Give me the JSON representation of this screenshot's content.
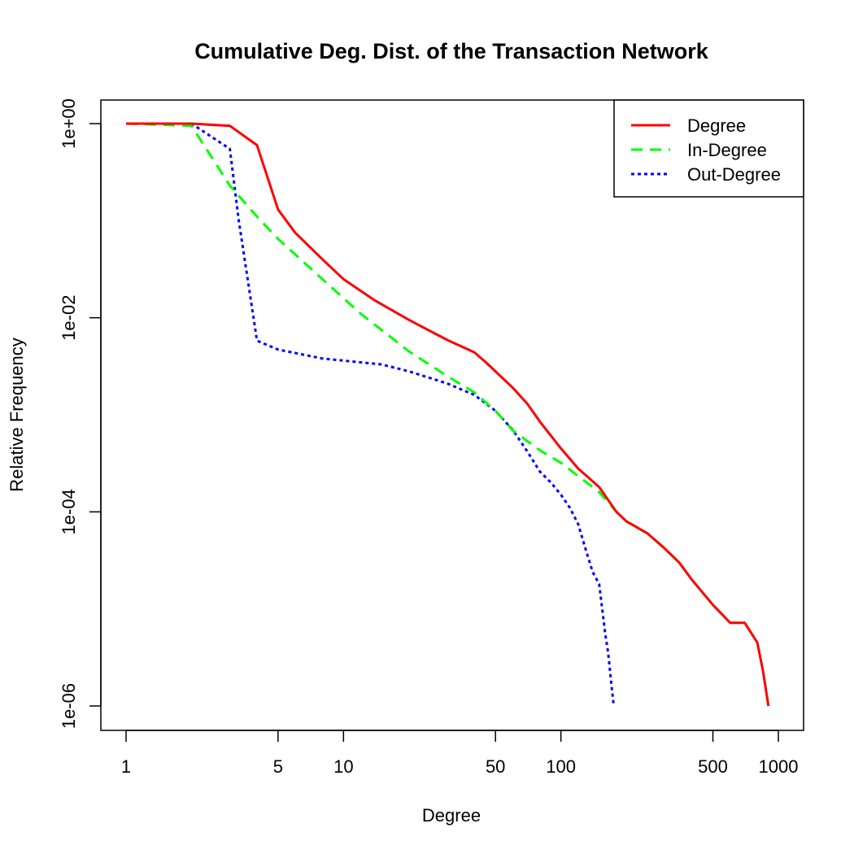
{
  "chart_data": {
    "type": "line",
    "title": "Cumulative Deg. Dist. of the Transaction Network",
    "xlabel": "Degree",
    "ylabel": "Relative Frequency",
    "x_scale": "log",
    "y_scale": "log",
    "xlim": [
      1,
      1000
    ],
    "ylim": [
      1e-06,
      1
    ],
    "x_ticks": [
      1,
      5,
      10,
      50,
      100,
      500,
      1000
    ],
    "x_tick_labels": [
      "1",
      "5",
      "10",
      "50",
      "100",
      "500",
      "1000"
    ],
    "y_ticks": [
      1,
      0.01,
      0.0001,
      1e-06
    ],
    "y_tick_labels": [
      "1e+00",
      "1e-02",
      "1e-04",
      "1e-06"
    ],
    "legend_position": "top-right",
    "series": [
      {
        "name": "Degree",
        "color": "#ff0000",
        "style": "solid",
        "x": [
          1,
          2,
          3,
          4,
          5,
          6,
          8,
          10,
          14,
          20,
          30,
          40,
          45,
          50,
          60,
          70,
          80,
          100,
          120,
          150,
          180,
          200,
          250,
          300,
          350,
          400,
          500,
          600,
          700,
          800,
          850,
          900
        ],
        "y": [
          1,
          1,
          0.95,
          0.6,
          0.13,
          0.075,
          0.04,
          0.025,
          0.015,
          0.0095,
          0.0059,
          0.0044,
          0.0035,
          0.0028,
          0.0019,
          0.0013,
          0.00085,
          0.00045,
          0.00028,
          0.00018,
          0.0001,
          8e-05,
          6e-05,
          4.2e-05,
          3e-05,
          2e-05,
          1.1e-05,
          7.2e-06,
          7.2e-06,
          4.5e-06,
          2.3e-06,
          1e-06
        ]
      },
      {
        "name": "In-Degree",
        "color": "#00ff00",
        "style": "dashed",
        "x": [
          1,
          2,
          3,
          4,
          5,
          8,
          12,
          20,
          30,
          40,
          50,
          60,
          80,
          100,
          150,
          180,
          200,
          250,
          300,
          350,
          400,
          500,
          600,
          700,
          800,
          850,
          900
        ],
        "y": [
          1,
          0.95,
          0.23,
          0.11,
          0.065,
          0.025,
          0.011,
          0.0045,
          0.0025,
          0.0017,
          0.0011,
          0.00069,
          0.00043,
          0.00032,
          0.00016,
          0.0001,
          8e-05,
          6e-05,
          4.2e-05,
          3e-05,
          2e-05,
          1.1e-05,
          7.2e-06,
          7.2e-06,
          4.5e-06,
          2.3e-06,
          1e-06
        ]
      },
      {
        "name": "Out-Degree",
        "color": "#0000ff",
        "style": "dotted",
        "x": [
          1,
          2,
          3,
          3.3,
          4,
          5,
          8,
          15,
          20,
          30,
          40,
          50,
          60,
          70,
          80,
          90,
          100,
          110,
          120,
          130,
          140,
          150,
          160,
          165,
          170,
          175
        ],
        "y": [
          1,
          1,
          0.55,
          0.1,
          0.0058,
          0.0047,
          0.0038,
          0.0033,
          0.0028,
          0.0021,
          0.0016,
          0.0011,
          0.0007,
          0.00042,
          0.00026,
          0.0002,
          0.00015,
          0.00011,
          7.5e-05,
          4.1e-05,
          2.4e-05,
          1.8e-05,
          5.5e-06,
          3.5e-06,
          1.8e-06,
          1e-06
        ]
      }
    ]
  }
}
